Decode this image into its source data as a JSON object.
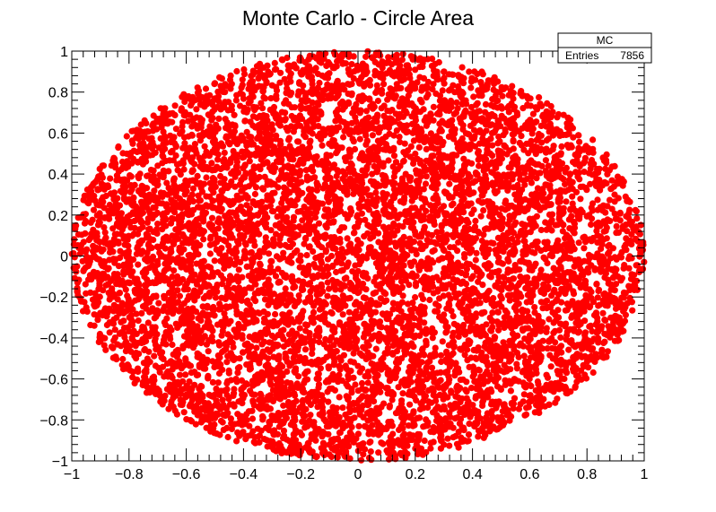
{
  "chart_data": {
    "type": "scatter",
    "title": "Monte Carlo - Circle Area",
    "xlabel": "",
    "ylabel": "",
    "xlim": [
      -1,
      1
    ],
    "ylim": [
      -1,
      1
    ],
    "x_ticks": [
      -1,
      -0.8,
      -0.6,
      -0.4,
      -0.2,
      0,
      0.2,
      0.4,
      0.6,
      0.8,
      1
    ],
    "y_ticks": [
      -1,
      -0.8,
      -0.6,
      -0.4,
      -0.2,
      0,
      0.2,
      0.4,
      0.6,
      0.8,
      1
    ],
    "x_tick_labels": [
      "−1",
      "−0.8",
      "−0.6",
      "−0.4",
      "−0.2",
      "0",
      "0.2",
      "0.4",
      "0.6",
      "0.8",
      "1"
    ],
    "y_tick_labels": [
      "−1",
      "−0.8",
      "−0.6",
      "−0.4",
      "−0.2",
      "0",
      "0.2",
      "0.4",
      "0.6",
      "0.8",
      "1"
    ],
    "grid": false,
    "marker_color": "#ff0000",
    "region": "unit circle x^2 + y^2 <= 1",
    "series": [
      {
        "entries": 7856
      }
    ],
    "stats_box": {
      "name": "MC",
      "entries_label": "Entries",
      "entries_value": "7856",
      "placement": "top-right"
    }
  }
}
